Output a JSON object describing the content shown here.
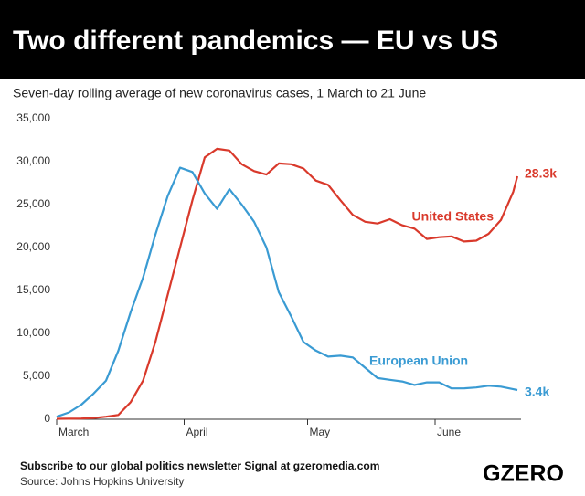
{
  "chart_data": {
    "type": "line",
    "title": "Two different pandemics — EU vs US",
    "subtitle": "Seven-day rolling average of new coronavirus cases, 1 March to 21 June",
    "x": [
      0,
      3,
      6,
      9,
      12,
      15,
      18,
      21,
      24,
      27,
      30,
      33,
      36,
      39,
      42,
      45,
      48,
      51,
      54,
      57,
      60,
      63,
      66,
      69,
      72,
      75,
      78,
      81,
      84,
      87,
      90,
      93,
      96,
      99,
      102,
      105,
      108,
      111,
      112
    ],
    "xlim": [
      0,
      112
    ],
    "xticks": [
      {
        "value": 0,
        "label": "March"
      },
      {
        "value": 31,
        "label": "April"
      },
      {
        "value": 61,
        "label": "May"
      },
      {
        "value": 92,
        "label": "June"
      }
    ],
    "ylim": [
      0,
      35000
    ],
    "yticks": [
      {
        "value": 0,
        "label": "0"
      },
      {
        "value": 5000,
        "label": "5,000"
      },
      {
        "value": 10000,
        "label": "10,000"
      },
      {
        "value": 15000,
        "label": "15,000"
      },
      {
        "value": 20000,
        "label": "20,000"
      },
      {
        "value": 25000,
        "label": "25,000"
      },
      {
        "value": 30000,
        "label": "30,000"
      },
      {
        "value": 35000,
        "label": "35,000"
      }
    ],
    "grid": false,
    "series": [
      {
        "name": "United States",
        "color": "#d9392b",
        "end_label": "28.3k",
        "values": [
          50,
          60,
          80,
          150,
          300,
          500,
          2000,
          4500,
          9000,
          14500,
          20000,
          25500,
          30500,
          31500,
          31300,
          29700,
          28900,
          28500,
          29800,
          29700,
          29200,
          27800,
          27300,
          25500,
          23800,
          23000,
          22800,
          23300,
          22600,
          22200,
          21000,
          21200,
          21300,
          20700,
          20800,
          21600,
          23200,
          26500,
          28300
        ]
      },
      {
        "name": "European Union",
        "color": "#3a9bd3",
        "end_label": "3.4k",
        "values": [
          300,
          800,
          1700,
          3000,
          4500,
          8000,
          12500,
          16500,
          21500,
          26000,
          29300,
          28800,
          26300,
          24500,
          26800,
          25000,
          23000,
          20000,
          14800,
          12000,
          9000,
          8000,
          7300,
          7400,
          7200,
          6000,
          4800,
          4600,
          4400,
          4000,
          4300,
          4300,
          3600,
          3600,
          3700,
          3900,
          3800,
          3500,
          3400
        ]
      }
    ]
  },
  "footer": {
    "subscribe": "Subscribe to our global politics newsletter Signal at gzeromedia.com",
    "source": "Source: Johns Hopkins University",
    "logo": "GZERO"
  }
}
